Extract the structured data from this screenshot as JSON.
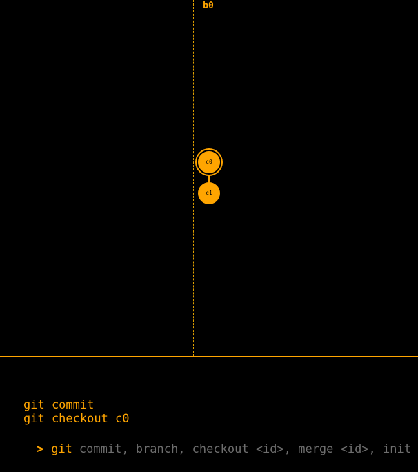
{
  "colors": {
    "accent": "#ffa500",
    "background": "#000000",
    "placeholder": "#6e6e6e"
  },
  "graph": {
    "branch": {
      "label": "b0"
    },
    "commits": [
      {
        "label": "c0",
        "current": true
      },
      {
        "label": "c1",
        "current": false
      }
    ]
  },
  "console": {
    "history": [
      "git commit",
      "git checkout c0"
    ],
    "prompt_symbol": ">",
    "command_prefix": "git",
    "input_value": "",
    "input_placeholder": "commit, branch, checkout <id>, merge <id>, init"
  }
}
